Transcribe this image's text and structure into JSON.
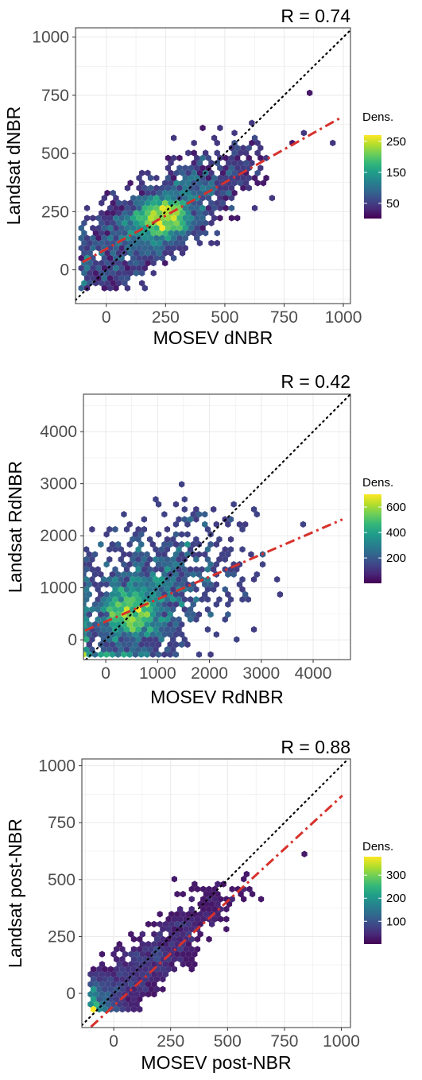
{
  "colors": {
    "background": "#ffffff",
    "grid": "#ebebeb",
    "border": "#333333",
    "fit_line": "#d7312b",
    "identity_line": "#000000",
    "viridis": [
      "#440154",
      "#482878",
      "#3e4989",
      "#31688e",
      "#26828e",
      "#1f9e89",
      "#35b779",
      "#6ece58",
      "#b5de2b",
      "#fde725"
    ]
  },
  "chart_data": [
    {
      "type": "scatter",
      "subtype": "hexbin",
      "annotation": "R = 0.74",
      "xlabel": "MOSEV dNBR",
      "ylabel": "Landsat dNBR",
      "xlim": [
        -130,
        1030
      ],
      "ylim": [
        -145,
        1040
      ],
      "xticks": [
        0,
        250,
        500,
        750,
        1000
      ],
      "xtick_labels": [
        "0",
        "250",
        "500",
        "750",
        "1000"
      ],
      "yticks": [
        0,
        250,
        500,
        750,
        1000
      ],
      "ytick_labels": [
        "0",
        "250",
        "500",
        "750",
        "1000"
      ],
      "grid": true,
      "identity_line": true,
      "fit_line": {
        "slope": 0.57,
        "intercept": 90
      },
      "legend": {
        "title": "Dens.",
        "ticks": [
          250,
          150,
          50
        ],
        "range": [
          1,
          270
        ],
        "position": "right"
      },
      "density_peak": [
        240,
        220
      ],
      "cloud": {
        "center": [
          220,
          220
        ],
        "spread": [
          170,
          130
        ],
        "corr": 0.74
      }
    },
    {
      "type": "scatter",
      "subtype": "hexbin",
      "annotation": "R = 0.42",
      "xlabel": "MOSEV RdNBR",
      "ylabel": "Landsat RdNBR",
      "xlim": [
        -430,
        4720
      ],
      "ylim": [
        -380,
        4720
      ],
      "xticks": [
        0,
        1000,
        2000,
        3000,
        4000
      ],
      "xtick_labels": [
        "0",
        "1000",
        "2000",
        "3000",
        "4000"
      ],
      "yticks": [
        0,
        1000,
        2000,
        3000,
        4000
      ],
      "ytick_labels": [
        "0",
        "1000",
        "2000",
        "3000",
        "4000"
      ],
      "grid": true,
      "identity_line": true,
      "fit_line": {
        "slope": 0.43,
        "intercept": 350
      },
      "legend": {
        "title": "Dens.",
        "ticks": [
          600,
          400,
          200
        ],
        "range": [
          1,
          700
        ],
        "position": "right"
      },
      "density_peak": [
        500,
        500
      ],
      "cloud": {
        "center": [
          800,
          850
        ],
        "spread": [
          850,
          750
        ],
        "corr": 0.42
      }
    },
    {
      "type": "scatter",
      "subtype": "hexbin",
      "annotation": "R = 0.88",
      "xlabel": "MOSEV post-NBR",
      "ylabel": "Landsat post-NBR",
      "xlim": [
        -140,
        1040
      ],
      "ylim": [
        -150,
        1030
      ],
      "xticks": [
        0,
        250,
        500,
        750,
        1000
      ],
      "xtick_labels": [
        "0",
        "250",
        "500",
        "750",
        "1000"
      ],
      "yticks": [
        0,
        250,
        500,
        750,
        1000
      ],
      "ytick_labels": [
        "0",
        "250",
        "500",
        "750",
        "1000"
      ],
      "grid": true,
      "identity_line": true,
      "fit_line": {
        "slope": 0.92,
        "intercept": -55
      },
      "legend": {
        "title": "Dens.",
        "ticks": [
          300,
          200,
          100
        ],
        "range": [
          1,
          380
        ],
        "position": "right"
      },
      "density_peak": [
        -80,
        -30
      ],
      "cloud": {
        "center": [
          120,
          110
        ],
        "spread": [
          170,
          150
        ],
        "corr": 0.88
      }
    }
  ]
}
